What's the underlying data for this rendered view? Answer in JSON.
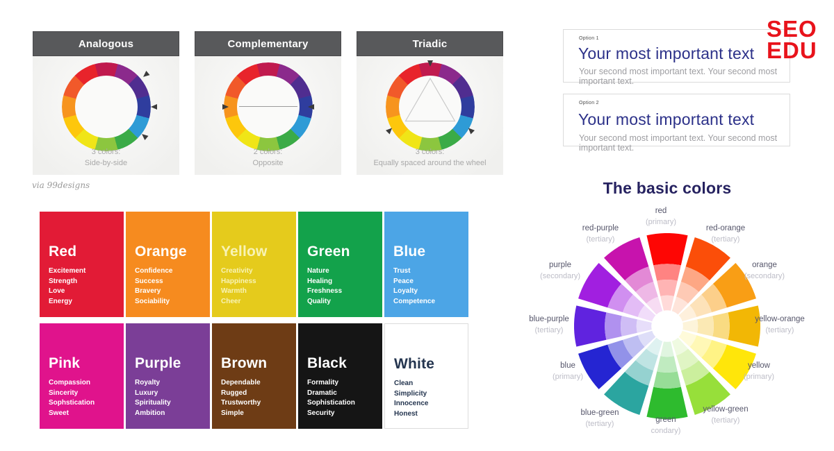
{
  "logo": {
    "line1": "SEO",
    "line2": "EDU",
    "color": "#E8131B"
  },
  "attribution": "via 99designs",
  "harmony": {
    "header_bg": "#58595B",
    "ring_colors": [
      "#C01A4E",
      "#8B2A8C",
      "#502D90",
      "#2F3D9E",
      "#2E9BD6",
      "#3BAB47",
      "#8CC63F",
      "#F0E517",
      "#FDC70C",
      "#F7941E",
      "#F1592A",
      "#E8242B"
    ],
    "panels": [
      {
        "title": "Analogous",
        "caption_line1": "3 colors:",
        "caption_line2": "Side-by-side"
      },
      {
        "title": "Complementary",
        "caption_line1": "2 colors:",
        "caption_line2": "Opposite"
      },
      {
        "title": "Triadic",
        "caption_line1": "3 colors:",
        "caption_line2": "Equally spaced around the wheel"
      }
    ]
  },
  "color_cards": [
    {
      "name": "Red",
      "bg": "#E21B36",
      "text_color": "#FFFFFF",
      "traits": [
        "Excitement",
        "Strength",
        "Love",
        "Energy"
      ]
    },
    {
      "name": "Orange",
      "bg": "#F68B1F",
      "text_color": "#FFFFFF",
      "traits": [
        "Confidence",
        "Success",
        "Bravery",
        "Sociability"
      ]
    },
    {
      "name": "Yellow",
      "bg": "#E5CB1C",
      "text_color": "#F8F3B5",
      "traits": [
        "Creativity",
        "Happiness",
        "Warmth",
        "Cheer"
      ]
    },
    {
      "name": "Green",
      "bg": "#13A24B",
      "text_color": "#FFFFFF",
      "traits": [
        "Nature",
        "Healing",
        "Freshness",
        "Quality"
      ]
    },
    {
      "name": "Blue",
      "bg": "#4CA5E6",
      "text_color": "#FFFFFF",
      "traits": [
        "Trust",
        "Peace",
        "Loyalty",
        "Competence"
      ]
    },
    {
      "name": "Pink",
      "bg": "#E0138C",
      "text_color": "#FFFFFF",
      "traits": [
        "Compassion",
        "Sincerity",
        "Sophstication",
        "Sweet"
      ]
    },
    {
      "name": "Purple",
      "bg": "#7B3E97",
      "text_color": "#FFFFFF",
      "traits": [
        "Royalty",
        "Luxury",
        "Spirituality",
        "Ambition"
      ]
    },
    {
      "name": "Brown",
      "bg": "#6E3C15",
      "text_color": "#FFFFFF",
      "traits": [
        "Dependable",
        "Rugged",
        "Trustworthy",
        "Simple"
      ]
    },
    {
      "name": "Black",
      "bg": "#151515",
      "text_color": "#FFFFFF",
      "traits": [
        "Formality",
        "Dramatic",
        "Sophistication",
        "Security"
      ]
    },
    {
      "name": "White",
      "bg": "#FFFFFF",
      "text_color": "#24354F",
      "traits": [
        "Clean",
        "Simplicity",
        "Innocence",
        "Honest"
      ]
    }
  ],
  "options": [
    {
      "label": "Option 1",
      "title": "Your most important text",
      "subtitle": "Your second most important text. Your second most important text."
    },
    {
      "label": "Option 2",
      "title": "Your most important text",
      "subtitle": "Your second most important text. Your second most important text."
    }
  ],
  "basic_colors": {
    "title": "The basic colors",
    "segments": [
      {
        "name": "red",
        "sub": "(primary)",
        "color": "#FE0604"
      },
      {
        "name": "red-orange",
        "sub": "(tertiary)",
        "color": "#FB4E09"
      },
      {
        "name": "orange",
        "sub": "(secondary)",
        "color": "#F99E15"
      },
      {
        "name": "yellow-orange",
        "sub": "(tertiary)",
        "color": "#F2B705"
      },
      {
        "name": "yellow",
        "sub": "(primary)",
        "color": "#FFE60A"
      },
      {
        "name": "yellow-green",
        "sub": "(tertiary)",
        "color": "#97DF3A"
      },
      {
        "name": "green",
        "sub": "condary)",
        "color": "#2EBB2E"
      },
      {
        "name": "blue-green",
        "sub": "(tertiary)",
        "color": "#2BA5A0"
      },
      {
        "name": "blue",
        "sub": "(primary)",
        "color": "#2525D2"
      },
      {
        "name": "blue-purple",
        "sub": "(tertiary)",
        "color": "#6023DF"
      },
      {
        "name": "purple",
        "sub": "(secondary)",
        "color": "#A11FE0"
      },
      {
        "name": "red-purple",
        "sub": "(tertiary)",
        "color": "#C713AD"
      }
    ]
  }
}
